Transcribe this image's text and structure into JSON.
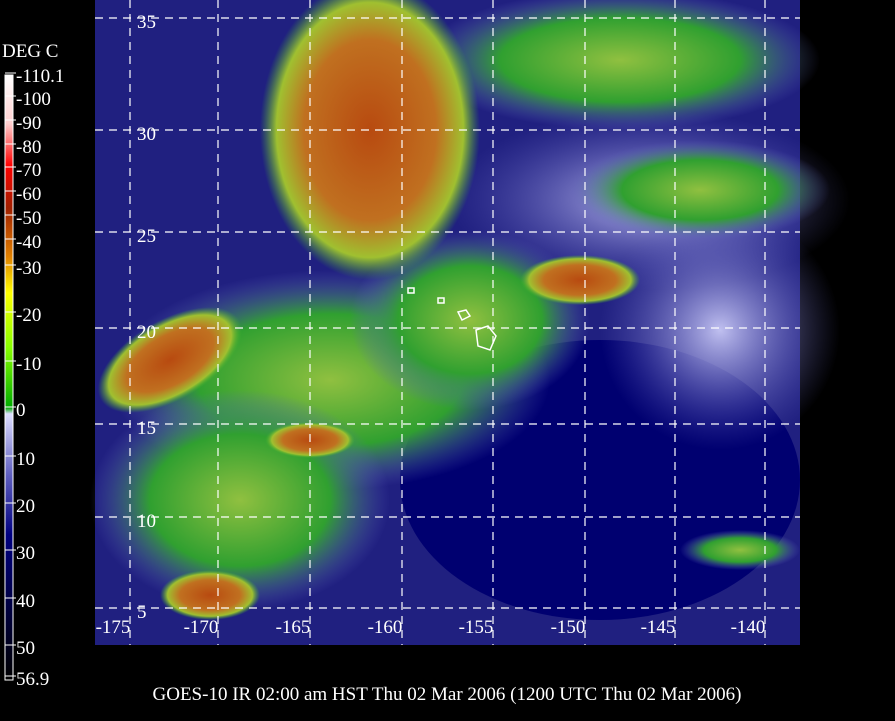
{
  "colorbar": {
    "title": "DEG C",
    "labels": [
      "-110.1",
      "-100",
      "-90",
      "-80",
      "-70",
      "-60",
      "-50",
      "-40",
      "-30",
      "-20",
      "-10",
      "0",
      "10",
      "20",
      "30",
      "40",
      "50",
      "56.9"
    ]
  },
  "map": {
    "latitude_labels": [
      "35",
      "30",
      "25",
      "20",
      "15",
      "10",
      "5"
    ],
    "longitude_labels": [
      "-175",
      "-170",
      "-165",
      "-160",
      "-155",
      "-150",
      "-145",
      "-140"
    ]
  },
  "caption": "GOES-10 IR 02:00 am HST Thu 02 Mar 2006 (1200 UTC Thu 02 Mar 2006)"
}
